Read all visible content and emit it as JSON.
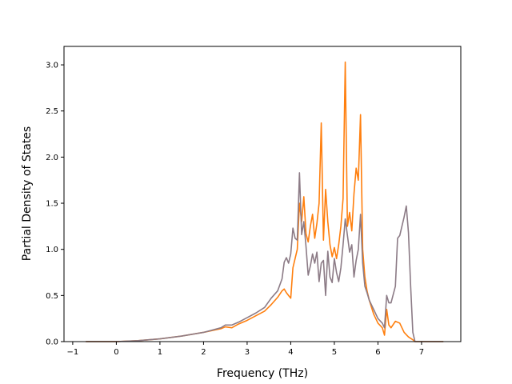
{
  "chart_data": {
    "type": "line",
    "title": "",
    "xlabel": "Frequency (THz)",
    "ylabel": "Partial Density of States",
    "xlim": [
      -1.2,
      7.9
    ],
    "ylim": [
      0.0,
      3.2
    ],
    "xticks": [
      -1,
      0,
      1,
      2,
      3,
      4,
      5,
      6,
      7
    ],
    "xtick_labels": [
      "−1",
      "0",
      "1",
      "2",
      "3",
      "4",
      "5",
      "6",
      "7"
    ],
    "yticks": [
      0.0,
      0.5,
      1.0,
      1.5,
      2.0,
      2.5,
      3.0
    ],
    "ytick_labels": [
      "0.0",
      "0.5",
      "1.0",
      "1.5",
      "2.0",
      "2.5",
      "3.0"
    ],
    "grid": false,
    "legend": "none",
    "series": [
      {
        "color": "#ff7f0e",
        "x": [
          -0.7,
          0.0,
          0.5,
          1.0,
          1.5,
          2.0,
          2.4,
          2.5,
          2.65,
          2.8,
          3.0,
          3.2,
          3.4,
          3.55,
          3.7,
          3.8,
          3.85,
          3.9,
          3.95,
          4.0,
          4.05,
          4.1,
          4.15,
          4.2,
          4.25,
          4.3,
          4.35,
          4.4,
          4.45,
          4.5,
          4.55,
          4.6,
          4.65,
          4.7,
          4.75,
          4.8,
          4.85,
          4.9,
          4.95,
          5.0,
          5.05,
          5.1,
          5.15,
          5.2,
          5.25,
          5.3,
          5.35,
          5.4,
          5.45,
          5.5,
          5.55,
          5.6,
          5.65,
          5.7,
          5.75,
          5.8,
          5.9,
          6.0,
          6.1,
          6.15,
          6.2,
          6.25,
          6.3,
          6.4,
          6.5,
          6.6,
          6.7,
          6.8,
          6.85,
          7.0,
          7.5
        ],
        "y": [
          0.0,
          0.0,
          0.01,
          0.03,
          0.06,
          0.1,
          0.14,
          0.16,
          0.15,
          0.19,
          0.23,
          0.28,
          0.33,
          0.4,
          0.48,
          0.55,
          0.57,
          0.53,
          0.5,
          0.47,
          0.8,
          0.9,
          1.0,
          1.5,
          1.3,
          1.57,
          1.17,
          1.08,
          1.25,
          1.38,
          1.12,
          1.28,
          1.5,
          2.37,
          1.1,
          1.65,
          1.3,
          1.05,
          0.92,
          1.02,
          0.9,
          1.05,
          1.25,
          1.55,
          3.03,
          1.25,
          1.4,
          1.2,
          1.6,
          1.88,
          1.75,
          2.46,
          1.0,
          0.7,
          0.55,
          0.45,
          0.3,
          0.2,
          0.15,
          0.07,
          0.35,
          0.18,
          0.15,
          0.22,
          0.2,
          0.1,
          0.05,
          0.02,
          0.0,
          0.0,
          0.0
        ]
      },
      {
        "color": "#8c7b86",
        "x": [
          -0.7,
          0.0,
          0.5,
          1.0,
          1.5,
          2.0,
          2.4,
          2.5,
          2.65,
          2.8,
          3.0,
          3.2,
          3.4,
          3.55,
          3.7,
          3.8,
          3.85,
          3.9,
          3.95,
          4.0,
          4.05,
          4.1,
          4.15,
          4.2,
          4.25,
          4.3,
          4.35,
          4.4,
          4.45,
          4.5,
          4.55,
          4.6,
          4.65,
          4.7,
          4.75,
          4.8,
          4.85,
          4.9,
          4.95,
          5.0,
          5.05,
          5.1,
          5.15,
          5.2,
          5.25,
          5.3,
          5.35,
          5.4,
          5.45,
          5.5,
          5.55,
          5.6,
          5.65,
          5.7,
          5.75,
          5.8,
          5.9,
          6.0,
          6.1,
          6.15,
          6.2,
          6.25,
          6.3,
          6.4,
          6.45,
          6.5,
          6.55,
          6.6,
          6.65,
          6.7,
          6.75,
          6.8,
          6.85,
          7.0,
          7.5
        ],
        "y": [
          0.0,
          0.0,
          0.01,
          0.03,
          0.06,
          0.1,
          0.15,
          0.18,
          0.18,
          0.21,
          0.26,
          0.31,
          0.37,
          0.47,
          0.55,
          0.68,
          0.86,
          0.91,
          0.85,
          0.95,
          1.23,
          1.12,
          1.1,
          1.83,
          1.16,
          1.3,
          1.03,
          0.72,
          0.82,
          0.95,
          0.85,
          0.97,
          0.65,
          0.85,
          0.88,
          0.5,
          0.98,
          0.7,
          0.64,
          0.9,
          0.75,
          0.65,
          0.8,
          1.05,
          1.33,
          1.15,
          0.97,
          1.05,
          0.7,
          0.88,
          1.0,
          1.38,
          0.85,
          0.6,
          0.53,
          0.45,
          0.35,
          0.25,
          0.2,
          0.15,
          0.5,
          0.42,
          0.42,
          0.6,
          1.12,
          1.15,
          1.25,
          1.35,
          1.47,
          1.18,
          0.6,
          0.1,
          0.0,
          0.0,
          0.0
        ]
      }
    ]
  }
}
